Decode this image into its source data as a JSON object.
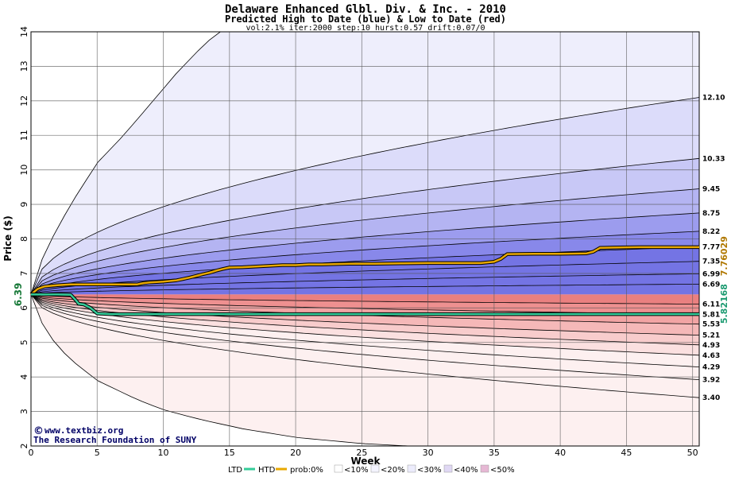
{
  "title": "Delaware Enhanced Glbl. Div. & Inc. - 2010",
  "subtitle": "Predicted High to Date (blue) &  Low to Date (red)",
  "params": "vol:2.1% iter:2000 step:10 hurst:0.57 drift:0.07/0",
  "credit_line1": "www.textbiz.org",
  "credit_line2": "The Research Foundation of SUNY",
  "colors": {
    "htd_line": "#e8a800",
    "ltd_line": "#33cc99",
    "blue_bands": [
      "#eeeefc",
      "#dcdcfa",
      "#c8c8f6",
      "#b4b4f2",
      "#9c9cee",
      "#8888ea",
      "#7474e4"
    ],
    "red_bands": [
      "#fdf0f0",
      "#fbe0e0",
      "#f8cccc",
      "#f5b8b8",
      "#f2a4a4",
      "#ee9090",
      "#ea8080"
    ]
  },
  "chart_data": {
    "type": "line",
    "title": "Delaware Enhanced Glbl. Div. & Inc. - 2010",
    "subtitle": "Predicted High to Date (blue) &  Low to Date (red)",
    "xlabel": "Week",
    "ylabel": "Price ($)",
    "xlim": [
      0,
      50.5
    ],
    "ylim": [
      2,
      14
    ],
    "x_ticks": [
      0,
      5,
      10,
      15,
      20,
      25,
      30,
      35,
      40,
      45,
      50
    ],
    "y_ticks": [
      2,
      3,
      4,
      5,
      6,
      7,
      8,
      9,
      10,
      11,
      12,
      13,
      14
    ],
    "grid": true,
    "start_price": 6.39,
    "start_price_label": "6.39",
    "high_quantile_ends": [
      12.1,
      10.33,
      9.45,
      8.75,
      8.22,
      7.77,
      7.35,
      6.99,
      6.69
    ],
    "low_quantile_ends": [
      6.11,
      5.81,
      5.53,
      5.21,
      4.93,
      4.63,
      4.29,
      3.92,
      3.4
    ],
    "high_quantile_labels": [
      "12.10",
      "10.33",
      "9.45",
      "8.75",
      "8.22",
      "7.77",
      "7.35",
      "6.99",
      "6.69"
    ],
    "low_quantile_labels": [
      "6.11",
      "5.81",
      "5.53",
      "5.21",
      "4.93",
      "4.63",
      "4.29",
      "3.92",
      "3.40"
    ],
    "outer_high_path": {
      "x": [
        0,
        1,
        2,
        3,
        5,
        7,
        9,
        11,
        13,
        14.2
      ],
      "y": [
        6.39,
        7.6,
        8.3,
        9.0,
        10.2,
        11.0,
        11.9,
        12.8,
        13.6,
        14.0
      ]
    },
    "outer_low_path": {
      "x": [
        0,
        1,
        2,
        3,
        5,
        8,
        10,
        13,
        16,
        20,
        25,
        28.5
      ],
      "y": [
        6.39,
        5.4,
        4.9,
        4.5,
        3.9,
        3.35,
        3.05,
        2.75,
        2.5,
        2.25,
        2.07,
        2.0
      ]
    },
    "series": [
      {
        "name": "HTD",
        "x": [
          0,
          0.5,
          1,
          1.5,
          2,
          2.5,
          3,
          4,
          5,
          6,
          7,
          8,
          8.5,
          9,
          10,
          11,
          11.5,
          12,
          12.5,
          13,
          13.5,
          14,
          14.5,
          15,
          16,
          17,
          18,
          19,
          20,
          21,
          22,
          24,
          26,
          28,
          30,
          32,
          34,
          35,
          35.5,
          36,
          38,
          40,
          42,
          42.5,
          43,
          44,
          46,
          48,
          50.5
        ],
        "y": [
          6.39,
          6.55,
          6.62,
          6.64,
          6.66,
          6.67,
          6.68,
          6.68,
          6.68,
          6.68,
          6.68,
          6.68,
          6.72,
          6.74,
          6.76,
          6.8,
          6.84,
          6.88,
          6.93,
          6.98,
          7.02,
          7.08,
          7.13,
          7.17,
          7.18,
          7.2,
          7.22,
          7.24,
          7.24,
          7.26,
          7.26,
          7.28,
          7.28,
          7.29,
          7.3,
          7.3,
          7.3,
          7.34,
          7.42,
          7.56,
          7.57,
          7.57,
          7.58,
          7.63,
          7.74,
          7.75,
          7.76,
          7.76,
          7.76
        ]
      },
      {
        "name": "LTD",
        "x": [
          0,
          1,
          2,
          3,
          3.4,
          3.6,
          4,
          4.5,
          5,
          6,
          10,
          20,
          30,
          40,
          50.5
        ],
        "y": [
          6.39,
          6.39,
          6.39,
          6.38,
          6.22,
          6.12,
          6.1,
          6.0,
          5.84,
          5.82,
          5.82,
          5.82,
          5.82,
          5.82,
          5.82
        ]
      }
    ],
    "end_values": {
      "htd": "7.76029",
      "ltd": "5.82168"
    },
    "legend": {
      "placement": "bottom",
      "items": [
        "LTD",
        "HTD",
        "prob:0%",
        "<10%",
        "<20%",
        "<30%",
        "<40%",
        "<50%"
      ]
    }
  }
}
